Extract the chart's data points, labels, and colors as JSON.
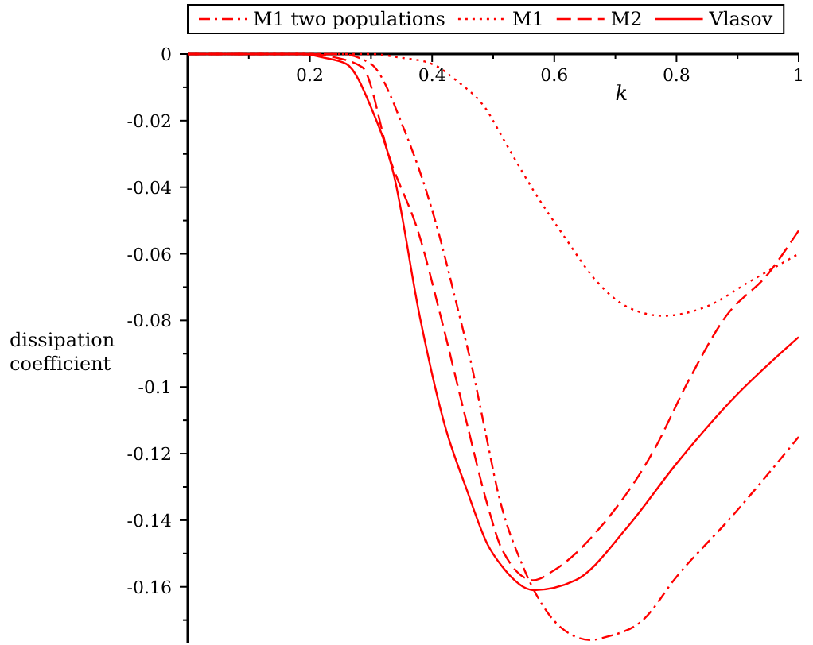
{
  "chart_data": {
    "type": "line",
    "xlabel": "k",
    "ylabel": "dissipation coefficient",
    "xlim": [
      0,
      1
    ],
    "ylim": [
      -0.177,
      0
    ],
    "xticks": [
      {
        "value": 0.1,
        "label": null
      },
      0.2,
      {
        "value": 0.3,
        "label": null
      },
      0.4,
      {
        "value": 0.5,
        "label": null
      },
      0.6,
      {
        "value": 0.7,
        "label": null
      },
      0.8,
      {
        "value": 0.9,
        "label": null
      },
      1
    ],
    "yticks": [
      0,
      {
        "value": -0.01,
        "label": null
      },
      -0.02,
      {
        "value": -0.03,
        "label": null
      },
      -0.04,
      {
        "value": -0.05,
        "label": null
      },
      -0.06,
      {
        "value": -0.07,
        "label": null
      },
      -0.08,
      {
        "value": -0.09,
        "label": null
      },
      -0.1,
      {
        "value": -0.11,
        "label": null
      },
      -0.12,
      {
        "value": -0.13,
        "label": null
      },
      -0.14,
      {
        "value": -0.15,
        "label": null
      },
      -0.16,
      {
        "value": -0.17,
        "label": null
      }
    ],
    "grid": false,
    "legend": "top",
    "marker": "none",
    "series": [
      {
        "name": "M1 two populations",
        "color": "#ff0000",
        "line_style": "dashdot",
        "x": [
          0,
          0.2,
          0.25,
          0.3,
          0.355,
          0.405,
          0.444,
          0.464,
          0.49,
          0.507,
          0.549,
          0.59,
          0.635,
          0.66,
          0.686,
          0.745,
          0.8,
          0.89,
          1
        ],
        "values": [
          0,
          0,
          0,
          -0.003,
          -0.023,
          -0.05,
          -0.078,
          -0.093,
          -0.116,
          -0.131,
          -0.154,
          -0.168,
          -0.175,
          -0.176,
          -0.175,
          -0.17,
          -0.157,
          -0.139,
          -0.115
        ]
      },
      {
        "name": "M1",
        "color": "#ff0000",
        "line_style": "dotted",
        "x": [
          0,
          0.3,
          0.345,
          0.4,
          0.44,
          0.49,
          0.515,
          0.566,
          0.617,
          0.668,
          0.72,
          0.778,
          0.847,
          0.923,
          1
        ],
        "values": [
          0,
          0,
          -0.001,
          -0.003,
          -0.008,
          -0.017,
          -0.025,
          -0.041,
          -0.055,
          -0.068,
          -0.076,
          -0.0786,
          -0.076,
          -0.068,
          -0.06
        ]
      },
      {
        "name": "M2",
        "color": "#ff0000",
        "line_style": "dashed",
        "x": [
          0,
          0.2,
          0.24,
          0.286,
          0.33,
          0.38,
          0.413,
          0.457,
          0.49,
          0.515,
          0.566,
          0.6,
          0.676,
          0.763,
          0.82,
          0.88,
          0.95,
          1
        ],
        "values": [
          0,
          0,
          -0.001,
          -0.004,
          -0.031,
          -0.055,
          -0.078,
          -0.111,
          -0.135,
          -0.149,
          -0.158,
          -0.155,
          -0.142,
          -0.119,
          -0.098,
          -0.079,
          -0.066,
          -0.053
        ]
      },
      {
        "name": "Vlasov",
        "color": "#ff0000",
        "line_style": "solid",
        "x": [
          0,
          0.19,
          0.22,
          0.26,
          0.3,
          0.337,
          0.38,
          0.42,
          0.457,
          0.49,
          0.515,
          0.566,
          0.635,
          0.72,
          0.8,
          0.89,
          1
        ],
        "values": [
          0,
          0,
          -0.001,
          -0.003,
          -0.016,
          -0.036,
          -0.079,
          -0.111,
          -0.131,
          -0.147,
          -0.154,
          -0.161,
          -0.158,
          -0.142,
          -0.123,
          -0.104,
          -0.085
        ]
      }
    ]
  }
}
